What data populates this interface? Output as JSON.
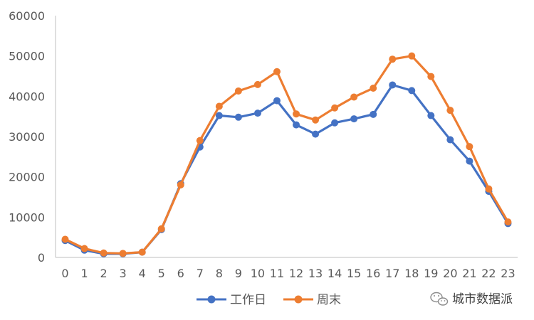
{
  "chart_data": {
    "type": "line",
    "title": "",
    "xlabel": "",
    "ylabel": "",
    "ylim": [
      0,
      60000
    ],
    "yticks": [
      0,
      10000,
      20000,
      30000,
      40000,
      50000,
      60000
    ],
    "categories": [
      "0",
      "1",
      "2",
      "3",
      "4",
      "5",
      "6",
      "7",
      "8",
      "9",
      "10",
      "11",
      "12",
      "13",
      "14",
      "15",
      "16",
      "17",
      "18",
      "19",
      "20",
      "21",
      "22",
      "23"
    ],
    "grid": false,
    "legend_position": "bottom",
    "series": [
      {
        "name": "工作日",
        "color": "#4472C4",
        "values": [
          4200,
          1800,
          900,
          900,
          1300,
          6900,
          18300,
          27400,
          35200,
          34800,
          35800,
          38900,
          32900,
          30600,
          33400,
          34400,
          35500,
          42800,
          41400,
          35200,
          29200,
          23900,
          16400,
          8400
        ]
      },
      {
        "name": "周末",
        "color": "#ED7D31",
        "values": [
          4500,
          2200,
          1100,
          1000,
          1300,
          7100,
          18000,
          29000,
          37500,
          41300,
          42900,
          46100,
          35600,
          34100,
          37100,
          39800,
          42000,
          49200,
          50000,
          44900,
          36500,
          27500,
          17000,
          8800
        ]
      }
    ]
  },
  "watermark": {
    "text": "城市数据派",
    "icon": "wechat-icon"
  }
}
